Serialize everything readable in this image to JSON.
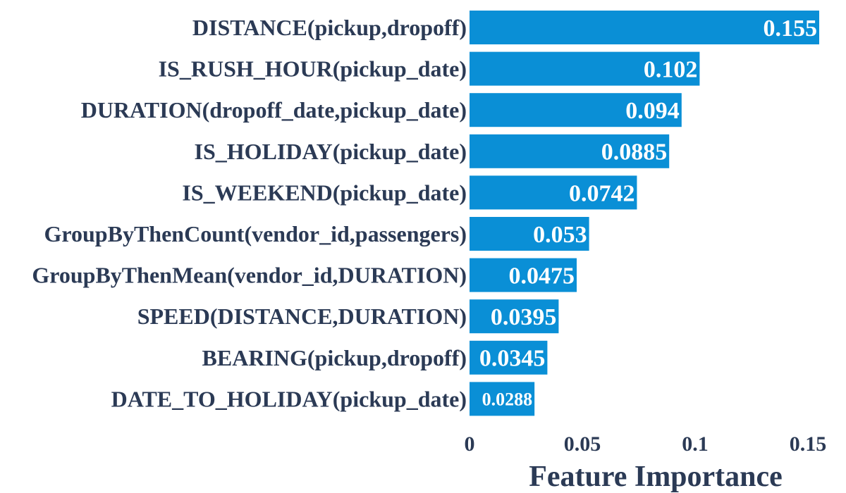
{
  "chart_data": {
    "type": "bar",
    "orientation": "horizontal",
    "title": "",
    "xlabel": "Feature Importance",
    "ylabel": "",
    "xlim": [
      0,
      0.15
    ],
    "xticks": [
      0,
      0.05,
      0.1,
      0.15
    ],
    "xtick_labels": [
      "0",
      "0.05",
      "0.1",
      "0.15"
    ],
    "grid": false,
    "bar_color": "#0a8fd6",
    "label_color": "#2b3a55",
    "categories": [
      "DISTANCE(pickup,dropoff)",
      "IS_RUSH_HOUR(pickup_date)",
      "DURATION(dropoff_date,pickup_date)",
      "IS_HOLIDAY(pickup_date)",
      "IS_WEEKEND(pickup_date)",
      "GroupByThenCount(vendor_id,passengers)",
      "GroupByThenMean(vendor_id,DURATION)",
      "SPEED(DISTANCE,DURATION)",
      "BEARING(pickup,dropoff)",
      "DATE_TO_HOLIDAY(pickup_date)"
    ],
    "values": [
      0.155,
      0.102,
      0.094,
      0.0885,
      0.0742,
      0.053,
      0.0475,
      0.0395,
      0.0345,
      0.0288
    ],
    "value_labels": [
      "0.155",
      "0.102",
      "0.094",
      "0.0885",
      "0.0742",
      "0.053",
      "0.0475",
      "0.0395",
      "0.0345",
      "0.0288"
    ]
  }
}
